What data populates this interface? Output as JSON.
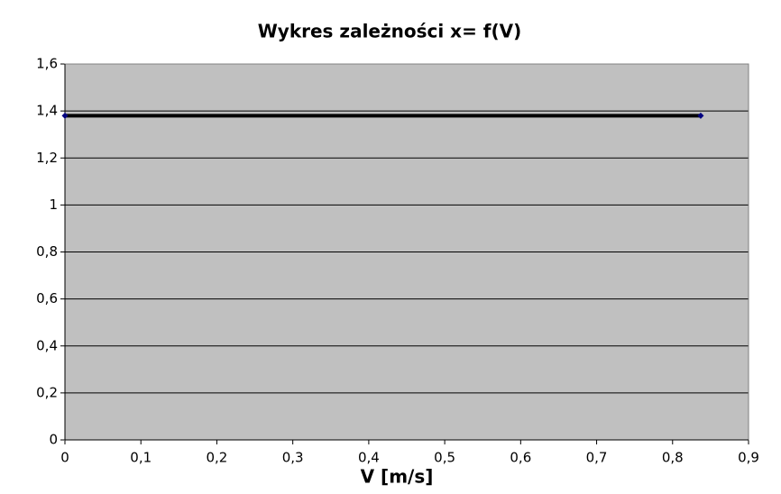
{
  "chart_data": {
    "type": "line",
    "title": "Wykres zależności x= f(V)",
    "xlabel": "V [m/s]",
    "x": [
      0,
      0.837
    ],
    "series": [
      {
        "color": "#000000",
        "marker_color": "#000080",
        "values": [
          1.38,
          1.38
        ]
      }
    ],
    "xlim": [
      0,
      0.9
    ],
    "xticks": [
      0,
      {
        "value": 0.1,
        "label": "0,1"
      },
      {
        "value": 0.2,
        "label": "0,2"
      },
      {
        "value": 0.3,
        "label": "0,3"
      },
      {
        "value": 0.4,
        "label": "0,4"
      },
      {
        "value": 0.5,
        "label": "0,5"
      },
      {
        "value": 0.6,
        "label": "0,6"
      },
      {
        "value": 0.7,
        "label": "0,7"
      },
      {
        "value": 0.8,
        "label": "0,8"
      },
      {
        "value": 0.9,
        "label": "0,9"
      }
    ],
    "ylim": [
      0,
      1.6
    ],
    "yticks": [
      0,
      {
        "value": 0.2,
        "label": "0,2"
      },
      {
        "value": 0.4,
        "label": "0,4"
      },
      {
        "value": 0.6,
        "label": "0,6"
      },
      {
        "value": 0.8,
        "label": "0,8"
      },
      1,
      {
        "value": 1.2,
        "label": "1,2"
      },
      {
        "value": 1.4,
        "label": "1,4"
      },
      {
        "value": 1.6,
        "label": "1,6"
      }
    ],
    "grid": true,
    "plot_background": "#c0c0c0"
  }
}
